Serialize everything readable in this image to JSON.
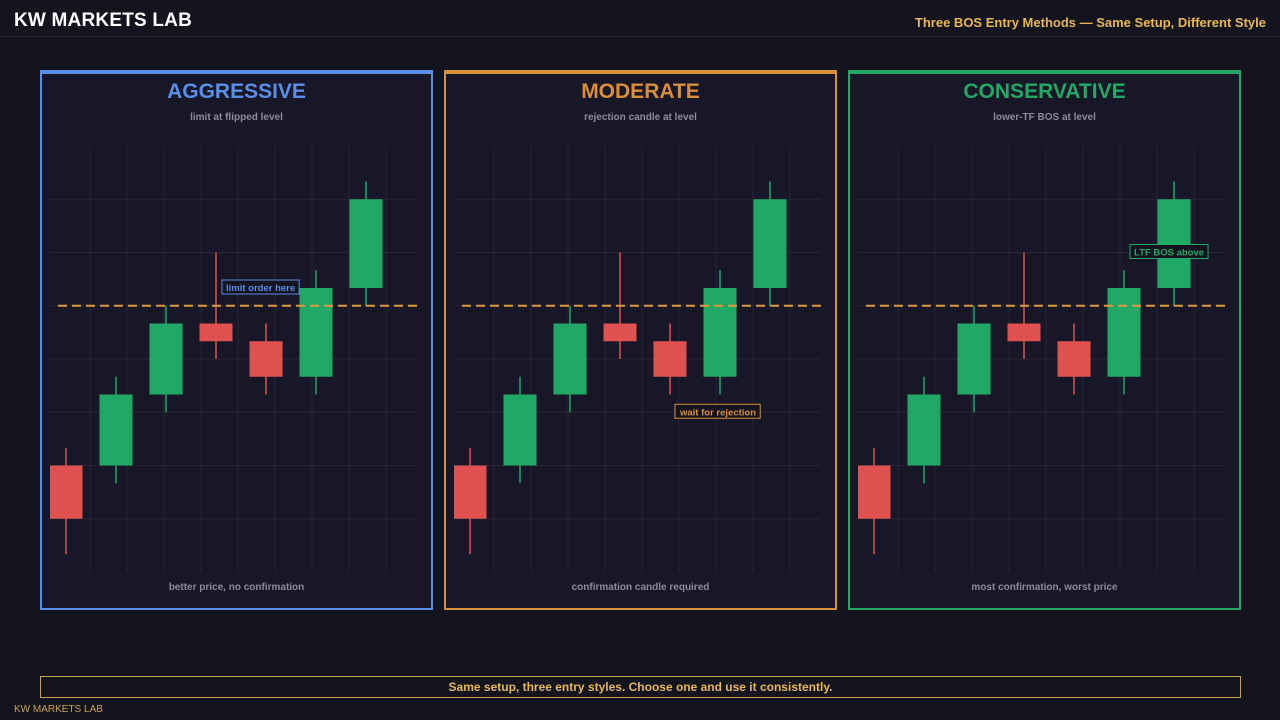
{
  "header": {
    "brand": "KW MARKETS LAB",
    "headline": "Three BOS Entry Methods — Same Setup, Different Style"
  },
  "colors": {
    "bull": "#20a866",
    "bear": "#e05252",
    "level": "#e09a3c",
    "grid": "#262636",
    "aggressive": "#5b8ee6",
    "moderate": "#d98e3a",
    "conservative": "#22a864",
    "note": "#e7b756"
  },
  "chart_data": [
    {
      "type": "candlestick",
      "title": "AGGRESSIVE",
      "subtitle": "limit at flipped level",
      "footer": "better price, no confirmation",
      "accent": "#5b8ee6",
      "ylim": [
        0,
        24
      ],
      "level": 15,
      "annotation": {
        "text": "limit order here",
        "anchor_candle": 3,
        "anchor_value": 16
      },
      "candles": [
        {
          "open": 6,
          "high": 7,
          "low": 1,
          "close": 3
        },
        {
          "open": 6,
          "high": 11,
          "low": 5,
          "close": 10
        },
        {
          "open": 10,
          "high": 15,
          "low": 9,
          "close": 14
        },
        {
          "open": 14,
          "high": 18,
          "low": 12,
          "close": 13
        },
        {
          "open": 13,
          "high": 14,
          "low": 10,
          "close": 11
        },
        {
          "open": 11,
          "high": 17,
          "low": 10,
          "close": 16
        },
        {
          "open": 16,
          "high": 22,
          "low": 15,
          "close": 21
        }
      ]
    },
    {
      "type": "candlestick",
      "title": "MODERATE",
      "subtitle": "rejection candle at level",
      "footer": "confirmation candle required",
      "accent": "#d98e3a",
      "ylim": [
        0,
        24
      ],
      "level": 15,
      "annotation": {
        "text": "wait for rejection",
        "anchor_candle": 4,
        "anchor_value": 9
      },
      "candles": [
        {
          "open": 6,
          "high": 7,
          "low": 1,
          "close": 3
        },
        {
          "open": 6,
          "high": 11,
          "low": 5,
          "close": 10
        },
        {
          "open": 10,
          "high": 15,
          "low": 9,
          "close": 14
        },
        {
          "open": 14,
          "high": 18,
          "low": 12,
          "close": 13
        },
        {
          "open": 13,
          "high": 14,
          "low": 10,
          "close": 11
        },
        {
          "open": 11,
          "high": 17,
          "low": 10,
          "close": 16
        },
        {
          "open": 16,
          "high": 22,
          "low": 15,
          "close": 21
        }
      ]
    },
    {
      "type": "candlestick",
      "title": "CONSERVATIVE",
      "subtitle": "lower-TF BOS at level",
      "footer": "most confirmation, worst price",
      "accent": "#22a864",
      "ylim": [
        0,
        24
      ],
      "level": 15,
      "annotation": {
        "text": "LTF BOS above",
        "anchor_candle": 5,
        "anchor_value": 18
      },
      "candles": [
        {
          "open": 6,
          "high": 7,
          "low": 1,
          "close": 3
        },
        {
          "open": 6,
          "high": 11,
          "low": 5,
          "close": 10
        },
        {
          "open": 10,
          "high": 15,
          "low": 9,
          "close": 14
        },
        {
          "open": 14,
          "high": 18,
          "low": 12,
          "close": 13
        },
        {
          "open": 13,
          "high": 14,
          "low": 10,
          "close": 11
        },
        {
          "open": 11,
          "high": 17,
          "low": 10,
          "close": 16
        },
        {
          "open": 16,
          "high": 22,
          "low": 15,
          "close": 21
        }
      ]
    }
  ],
  "footer": {
    "summary": "Same setup, three entry styles. Choose one and use it consistently.",
    "watermark": "KW MARKETS LAB"
  }
}
